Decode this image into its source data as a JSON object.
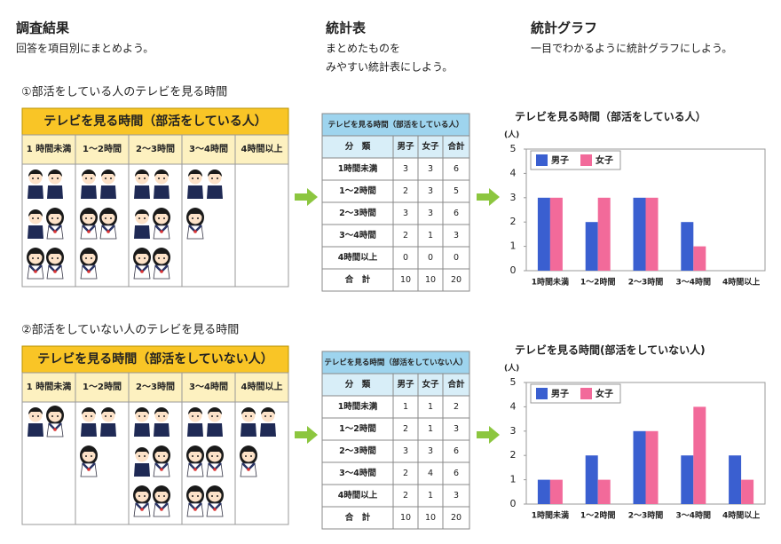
{
  "header": {
    "survey": {
      "title": "調査結果",
      "lines": [
        "回答を項目別にまとめよう。"
      ]
    },
    "table": {
      "title": "統計表",
      "lines": [
        "まとめたものを",
        "みやすい統計表にしよう。"
      ]
    },
    "graph": {
      "title": "統計グラフ",
      "lines": [
        "一目でわかるように統計グラフにしよう。"
      ]
    }
  },
  "sections": [
    {
      "title": "①部活をしている人のテレビを見る時間",
      "tally": {
        "title": "テレビを見る時間（部活をしている人）",
        "columns": [
          "1 時間未満",
          "1～2時間",
          "2～3時間",
          "3～4時間",
          "4時間以上"
        ]
      },
      "table": {
        "title": "テレビを見る時間（部活をしている人）",
        "columns": [
          "分　類",
          "男子",
          "女子",
          "合計"
        ],
        "rows": [
          [
            "1時間未満",
            3,
            3,
            6
          ],
          [
            "1～2時間",
            2,
            3,
            5
          ],
          [
            "2～3時間",
            3,
            3,
            6
          ],
          [
            "3～4時間",
            2,
            1,
            3
          ],
          [
            "4時間以上",
            0,
            0,
            0
          ],
          [
            "合　計",
            10,
            10,
            20
          ]
        ]
      }
    },
    {
      "title": "②部活をしていない人のテレビを見る時間",
      "tally": {
        "title": "テレビを見る時間（部活をしていない人）",
        "columns": [
          "1 時間未満",
          "1～2時間",
          "2～3時間",
          "3～4時間",
          "4時間以上"
        ]
      },
      "table": {
        "title": "テレビを見る時間（部活をしていない人）",
        "columns": [
          "分　類",
          "男子",
          "女子",
          "合計"
        ],
        "rows": [
          [
            "1時間未満",
            1,
            1,
            2
          ],
          [
            "1～2時間",
            2,
            1,
            3
          ],
          [
            "2～3時間",
            3,
            3,
            6
          ],
          [
            "3～4時間",
            2,
            4,
            6
          ],
          [
            "4時間以上",
            2,
            1,
            3
          ],
          [
            "合　計",
            10,
            10,
            20
          ]
        ]
      }
    }
  ],
  "chart_data": [
    {
      "type": "bar",
      "title": "テレビを見る時間（部活をしている人）",
      "y_label": "(人)",
      "categories": [
        "1時間未満",
        "1～2時間",
        "2～3時間",
        "3～4時間",
        "4時間以上"
      ],
      "series": [
        {
          "name": "男子",
          "color": "#3a5fd0",
          "values": [
            3,
            2,
            3,
            2,
            0
          ]
        },
        {
          "name": "女子",
          "color": "#f26a9a",
          "values": [
            3,
            3,
            3,
            1,
            0
          ]
        }
      ],
      "ylim": [
        0,
        5
      ],
      "yticks": [
        0,
        1,
        2,
        3,
        4,
        5
      ],
      "legend": "upper left"
    },
    {
      "type": "bar",
      "title": "テレビを見る時間(部活をしていない人)",
      "y_label": "(人)",
      "categories": [
        "1時間未満",
        "1～2時間",
        "2～3時間",
        "3～4時間",
        "4時間以上"
      ],
      "series": [
        {
          "name": "男子",
          "color": "#3a5fd0",
          "values": [
            1,
            2,
            3,
            2,
            2
          ]
        },
        {
          "name": "女子",
          "color": "#f26a9a",
          "values": [
            1,
            1,
            3,
            4,
            1
          ]
        }
      ],
      "ylim": [
        0,
        5
      ],
      "yticks": [
        0,
        1,
        2,
        3,
        4,
        5
      ],
      "legend": "upper left"
    }
  ]
}
